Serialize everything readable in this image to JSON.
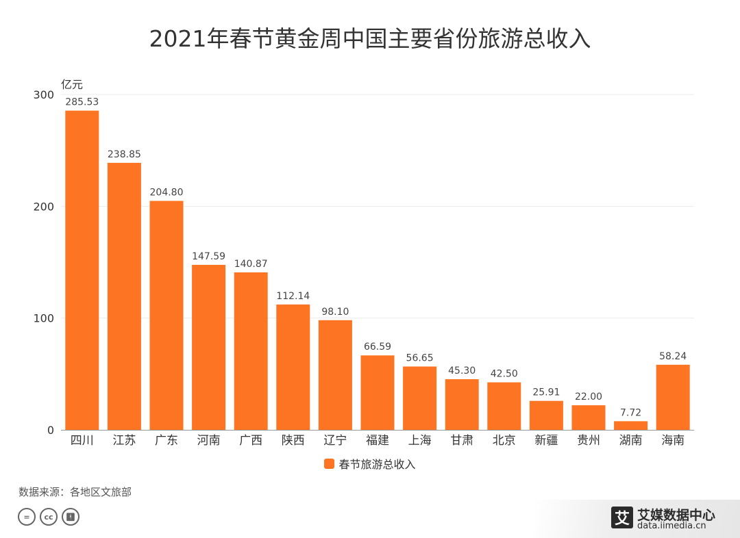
{
  "title": "2021年春节黄金周中国主要省份旅游总收入",
  "chart_data": {
    "type": "bar",
    "title": "2021年春节黄金周中国主要省份旅游总收入",
    "ylabel": "亿元",
    "ylim": [
      0,
      300
    ],
    "yticks": [
      0,
      100,
      200,
      300
    ],
    "grid": true,
    "legend_position": "bottom",
    "categories": [
      "四川",
      "江苏",
      "广东",
      "河南",
      "广西",
      "陕西",
      "辽宁",
      "福建",
      "上海",
      "甘肃",
      "北京",
      "新疆",
      "贵州",
      "湖南",
      "海南"
    ],
    "series": [
      {
        "name": "春节旅游总收入",
        "color": "#fd7522",
        "values": [
          285.53,
          238.85,
          204.8,
          147.59,
          140.87,
          112.14,
          98.1,
          66.59,
          56.65,
          45.3,
          42.5,
          25.91,
          22.0,
          7.72,
          58.24
        ],
        "labels": [
          "285.53",
          "238.85",
          "204.80",
          "147.59",
          "140.87",
          "112.14",
          "98.10",
          "66.59",
          "56.65",
          "45.30",
          "42.50",
          "25.91",
          "22.00",
          "7.72",
          "58.24"
        ]
      }
    ]
  },
  "source": "数据来源：各地区文旅部",
  "license_icons": [
    "equals-icon",
    "cc-icon",
    "person-icon"
  ],
  "brand": {
    "logo": "艾",
    "name": "艾媒数据中心",
    "url": "data.iimedia.cn"
  }
}
